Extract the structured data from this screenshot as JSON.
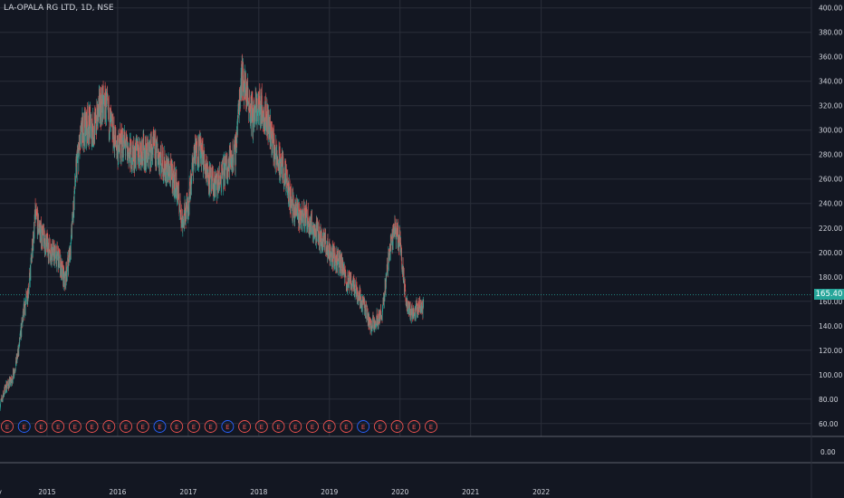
{
  "header": {
    "title": "LA-OPALA RG LTD, 1D, NSE"
  },
  "colors": {
    "background": "#131722",
    "up": "#26a69a",
    "down": "#ef5350",
    "grid": "#2a2e39",
    "axis_text": "#d1d4dc"
  },
  "last_price": {
    "label": "165.40",
    "value": 165.4
  },
  "chart_data": {
    "type": "line",
    "title": "LA-OPALA RG LTD, 1D, NSE",
    "xlabel": "",
    "ylabel": "",
    "x_ticks": [
      "May",
      "2015",
      "2016",
      "2017",
      "2018",
      "2019",
      "2020",
      "2021",
      "2022"
    ],
    "y_ticks": [
      "400.00",
      "380.00",
      "360.00",
      "340.00",
      "320.00",
      "300.00",
      "280.00",
      "260.00",
      "240.00",
      "220.00",
      "200.00",
      "180.00",
      "160.00",
      "140.00",
      "120.00",
      "100.00",
      "80.00",
      "60.00"
    ],
    "y_ticks_lower": [
      "0.00"
    ],
    "ylim": [
      48,
      402
    ],
    "grid": true,
    "series": [
      {
        "x": [
          "2014-05",
          "2014-06",
          "2014-07",
          "2014-08",
          "2014-09",
          "2014-10",
          "2014-11",
          "2014-12",
          "2015-01",
          "2015-02",
          "2015-03",
          "2015-04",
          "2015-05",
          "2015-06",
          "2015-07",
          "2015-08",
          "2015-09",
          "2015-10",
          "2015-11",
          "2015-12",
          "2016-01",
          "2016-02",
          "2016-03",
          "2016-04",
          "2016-05",
          "2016-06",
          "2016-07",
          "2016-08",
          "2016-09",
          "2016-10",
          "2016-11",
          "2016-12",
          "2017-01",
          "2017-02",
          "2017-03",
          "2017-04",
          "2017-05",
          "2017-06",
          "2017-07",
          "2017-08",
          "2017-09",
          "2017-10",
          "2017-11",
          "2017-12",
          "2018-01",
          "2018-02",
          "2018-03",
          "2018-04",
          "2018-05",
          "2018-06",
          "2018-07",
          "2018-08",
          "2018-09",
          "2018-10",
          "2018-11",
          "2018-12",
          "2019-01",
          "2019-02",
          "2019-03",
          "2019-04",
          "2019-05",
          "2019-06",
          "2019-07",
          "2019-08",
          "2019-09",
          "2019-10",
          "2019-11",
          "2019-12",
          "2020-01",
          "2020-02",
          "2020-03",
          "2020-04"
        ],
        "values": [
          75,
          90,
          95,
          115,
          150,
          175,
          230,
          215,
          205,
          200,
          195,
          175,
          205,
          270,
          300,
          305,
          300,
          320,
          320,
          300,
          285,
          290,
          280,
          280,
          285,
          280,
          285,
          280,
          270,
          265,
          255,
          225,
          240,
          280,
          285,
          270,
          255,
          255,
          265,
          275,
          280,
          345,
          330,
          310,
          320,
          315,
          300,
          275,
          270,
          250,
          235,
          230,
          230,
          222,
          215,
          210,
          200,
          195,
          190,
          175,
          175,
          165,
          155,
          140,
          145,
          150,
          195,
          220,
          210,
          160,
          150,
          155
        ]
      }
    ],
    "earnings_markers": [
      "E",
      "E",
      "E",
      "E",
      "E",
      "E",
      "E",
      "E",
      "E",
      "E",
      "E",
      "E",
      "E",
      "E",
      "E",
      "E",
      "E",
      "E",
      "E",
      "E",
      "E",
      "E",
      "E",
      "E",
      "E",
      "E"
    ]
  }
}
